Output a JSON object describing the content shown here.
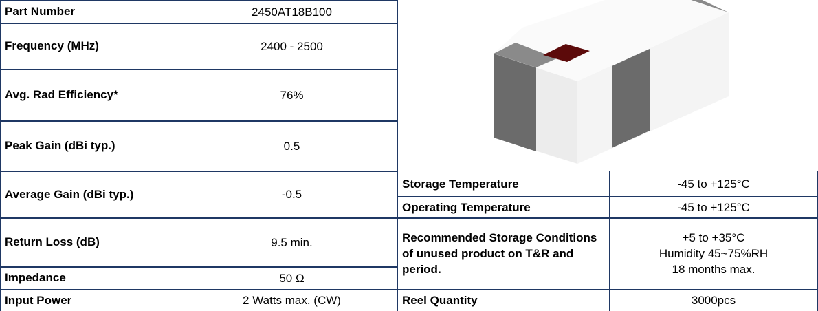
{
  "specs": [
    [
      "Part Number",
      "2450AT18B100"
    ],
    [
      "Frequency (MHz)",
      "2400 - 2500"
    ],
    [
      "Avg. Rad Efficiency*",
      "76%"
    ],
    [
      "Peak Gain (dBi typ.)",
      "0.5"
    ],
    [
      "Average Gain (dBi typ.)",
      "-0.5"
    ],
    [
      "Return Loss (dB)",
      "9.5 min."
    ],
    [
      "Impedance",
      "50 Ω"
    ],
    [
      "Input Power",
      "2 Watts max. (CW)"
    ]
  ],
  "conditions": [
    {
      "label": "Storage Temperature",
      "value": [
        "-45 to +125°C"
      ]
    },
    {
      "label": "Operating Temperature",
      "value": [
        "-45 to +125°C"
      ]
    },
    {
      "label": "Recommended Storage Conditions of unused product on T&R and period.",
      "value": [
        "+5 to +35°C",
        "Humidity 45~75%RH",
        "18 months max."
      ]
    },
    {
      "label": "Reel Quantity",
      "value": [
        "3000pcs"
      ]
    }
  ]
}
